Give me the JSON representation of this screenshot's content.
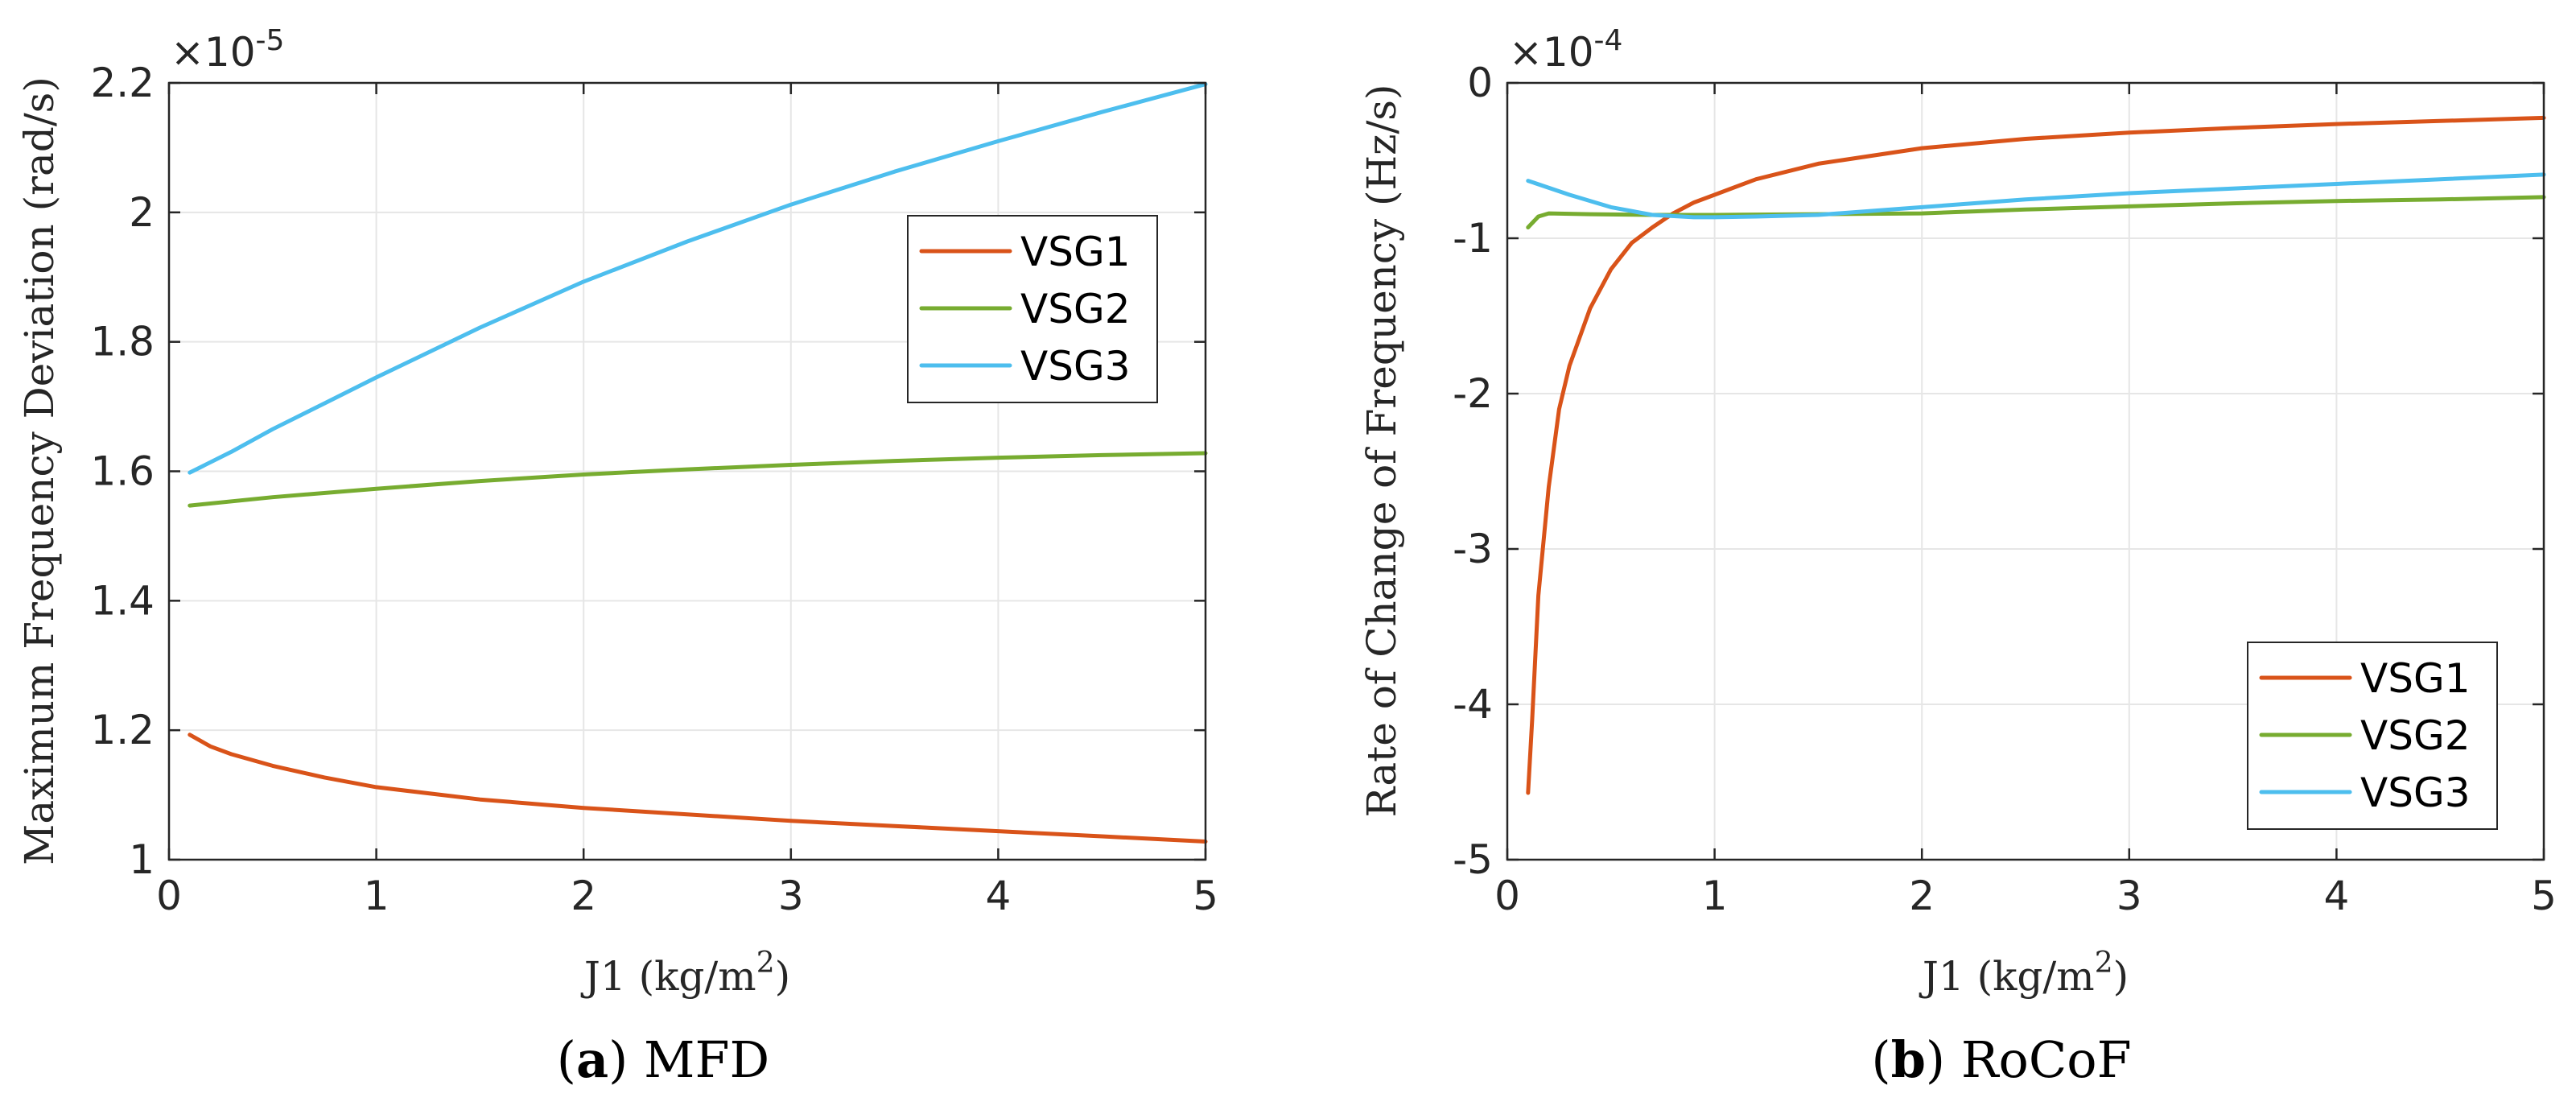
{
  "colors": {
    "VSG1": "#d95319",
    "VSG2": "#77ac30",
    "VSG3": "#4dbeee"
  },
  "chart_data": [
    {
      "type": "line",
      "panel_label": "a",
      "caption": "MFD",
      "title": "",
      "xlabel_prefix": "J1 (kg/m",
      "xlabel_sup": "2",
      "xlabel_suffix": ")",
      "ylabel": "Maximum Frequency Deviation (rad/s)",
      "exponent_prefix": "×10",
      "exponent_power": "-5",
      "xlim": [
        0,
        5
      ],
      "ylim": [
        1.0,
        2.2
      ],
      "xticks": [
        0,
        1,
        2,
        3,
        4,
        5
      ],
      "xtick_labels": [
        "0",
        "1",
        "2",
        "3",
        "4",
        "5"
      ],
      "yticks": [
        1.0,
        1.2,
        1.4,
        1.6,
        1.8,
        2.0,
        2.2
      ],
      "ytick_labels": [
        "1",
        "1.2",
        "1.4",
        "1.6",
        "1.8",
        "2",
        "2.2"
      ],
      "grid": true,
      "legend_position": "upper-right",
      "series": [
        {
          "name": "VSG1",
          "x": [
            0.1,
            0.2,
            0.3,
            0.5,
            0.75,
            1.0,
            1.5,
            2.0,
            2.5,
            3.0,
            3.5,
            4.0,
            4.5,
            5.0
          ],
          "y": [
            1.193,
            1.175,
            1.163,
            1.145,
            1.127,
            1.112,
            1.093,
            1.08,
            1.07,
            1.06,
            1.052,
            1.044,
            1.036,
            1.028
          ]
        },
        {
          "name": "VSG2",
          "x": [
            0.1,
            0.5,
            1.0,
            1.5,
            2.0,
            2.5,
            3.0,
            3.5,
            4.0,
            4.5,
            5.0
          ],
          "y": [
            1.547,
            1.56,
            1.573,
            1.585,
            1.595,
            1.603,
            1.61,
            1.616,
            1.621,
            1.625,
            1.628
          ]
        },
        {
          "name": "VSG3",
          "x": [
            0.1,
            0.3,
            0.5,
            0.75,
            1.0,
            1.5,
            2.0,
            2.5,
            3.0,
            3.5,
            4.0,
            4.5,
            5.0
          ],
          "y": [
            1.598,
            1.63,
            1.665,
            1.705,
            1.745,
            1.822,
            1.893,
            1.955,
            2.012,
            2.063,
            2.11,
            2.155,
            2.198
          ]
        }
      ]
    },
    {
      "type": "line",
      "panel_label": "b",
      "caption": "RoCoF",
      "title": "",
      "xlabel_prefix": "J1 (kg/m",
      "xlabel_sup": "2",
      "xlabel_suffix": ")",
      "ylabel": "Rate of Change of Frequency (Hz/s)",
      "exponent_prefix": "×10",
      "exponent_power": "-4",
      "xlim": [
        0,
        5
      ],
      "ylim": [
        -5,
        0
      ],
      "xticks": [
        0,
        1,
        2,
        3,
        4,
        5
      ],
      "xtick_labels": [
        "0",
        "1",
        "2",
        "3",
        "4",
        "5"
      ],
      "yticks": [
        -5,
        -4,
        -3,
        -2,
        -1,
        0
      ],
      "ytick_labels": [
        "-5",
        "-4",
        "-3",
        "-2",
        "-1",
        "0"
      ],
      "grid": true,
      "legend_position": "lower-right",
      "series": [
        {
          "name": "VSG1",
          "x": [
            0.1,
            0.12,
            0.15,
            0.2,
            0.25,
            0.3,
            0.4,
            0.5,
            0.6,
            0.7,
            0.8,
            0.9,
            1.0,
            1.2,
            1.5,
            2.0,
            2.5,
            3.0,
            3.5,
            4.0,
            4.5,
            5.0
          ],
          "y": [
            -4.57,
            -4.1,
            -3.3,
            -2.6,
            -2.1,
            -1.82,
            -1.45,
            -1.2,
            -1.03,
            -0.93,
            -0.84,
            -0.77,
            -0.72,
            -0.62,
            -0.52,
            -0.42,
            -0.36,
            -0.32,
            -0.29,
            -0.265,
            -0.245,
            -0.225
          ]
        },
        {
          "name": "VSG2",
          "x": [
            0.1,
            0.15,
            0.2,
            0.4,
            0.7,
            1.0,
            1.5,
            2.0,
            2.5,
            3.0,
            3.5,
            4.0,
            4.5,
            5.0
          ],
          "y": [
            -0.93,
            -0.86,
            -0.84,
            -0.845,
            -0.85,
            -0.85,
            -0.845,
            -0.84,
            -0.815,
            -0.795,
            -0.775,
            -0.76,
            -0.75,
            -0.735
          ]
        },
        {
          "name": "VSG3",
          "x": [
            0.1,
            0.3,
            0.5,
            0.7,
            0.9,
            1.0,
            1.2,
            1.5,
            2.0,
            2.5,
            3.0,
            3.5,
            4.0,
            4.5,
            5.0
          ],
          "y": [
            -0.63,
            -0.72,
            -0.8,
            -0.85,
            -0.865,
            -0.865,
            -0.86,
            -0.85,
            -0.8,
            -0.75,
            -0.71,
            -0.68,
            -0.65,
            -0.62,
            -0.59
          ]
        }
      ]
    }
  ]
}
